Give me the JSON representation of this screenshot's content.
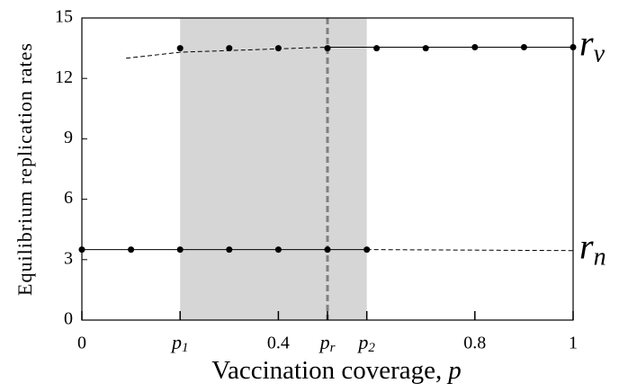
{
  "chart_data": {
    "type": "line",
    "xlabel": "Vaccination coverage,",
    "xlabel_var": "p",
    "ylabel": "Equilibrium replication rates",
    "xlim": [
      0,
      1
    ],
    "ylim": [
      0,
      15
    ],
    "yticks": [
      0,
      3,
      6,
      9,
      12,
      15
    ],
    "xticks": [
      0,
      {
        "value": 0.2,
        "label": "p",
        "sub": "1"
      },
      0.4,
      {
        "value": 0.5,
        "label": "p",
        "sub": "r"
      },
      {
        "value": 0.58,
        "label": "p",
        "sub": "2"
      },
      0.8,
      1
    ],
    "shaded_region": [
      0.2,
      0.58
    ],
    "vline": 0.5,
    "color": "#000000",
    "series": [
      {
        "style": "points",
        "x": [
          0.2,
          0.3,
          0.4,
          0.5,
          0.6,
          0.7,
          0.8,
          0.9,
          1.0
        ],
        "values": [
          13.5,
          13.5,
          13.5,
          13.5,
          13.5,
          13.5,
          13.55,
          13.55,
          13.55
        ]
      },
      {
        "style": "dashed",
        "x": [
          0.09,
          0.2,
          0.5
        ],
        "values": [
          13.0,
          13.3,
          13.55
        ]
      },
      {
        "style": "solid",
        "x": [
          0.5,
          1.0
        ],
        "values": [
          13.55,
          13.55
        ]
      },
      {
        "style": "points",
        "x": [
          0,
          0.1,
          0.2,
          0.3,
          0.4,
          0.5,
          0.58
        ],
        "values": [
          3.5,
          3.5,
          3.5,
          3.5,
          3.5,
          3.5,
          3.5
        ]
      },
      {
        "style": "solid",
        "x": [
          0,
          0.58
        ],
        "values": [
          3.5,
          3.5
        ]
      },
      {
        "style": "dashed",
        "x": [
          0.58,
          1.0
        ],
        "values": [
          3.5,
          3.45
        ]
      }
    ],
    "annotations": [
      {
        "text": "r",
        "sub": "v",
        "y": 13.55
      },
      {
        "text": "r",
        "sub": "n",
        "y": 3.45
      }
    ]
  }
}
